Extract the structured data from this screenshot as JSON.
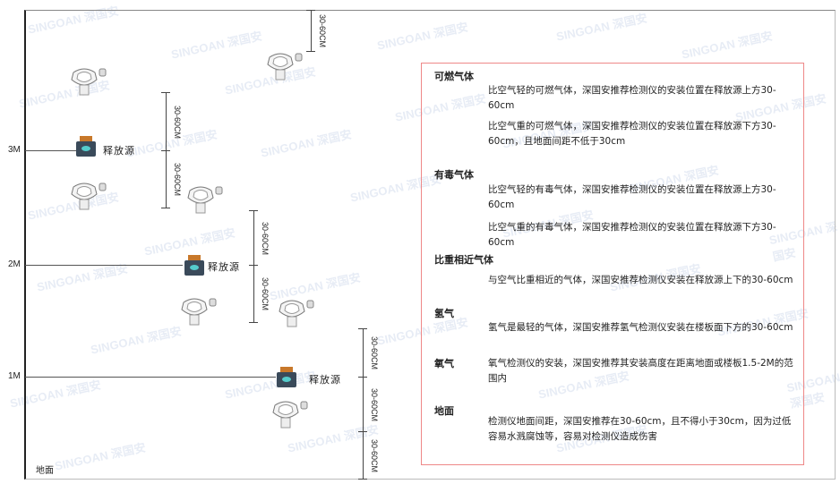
{
  "levels": {
    "m3": "3M",
    "m2": "2M",
    "m1": "1M",
    "ground": "地面"
  },
  "source_label": "释放源",
  "dim_label": "30-60CM",
  "watermark": "SINGOAN 深国安",
  "panel": {
    "s1": {
      "title": "可燃气体",
      "p1": "比空气轻的可燃气体，深国安推荐检测仪的安装位置在释放源上方30-60cm",
      "p2": "比空气重的可燃气体，深国安推荐检测仪的安装位置在释放源下方30-60cm，且地面间距不低于30cm"
    },
    "s2": {
      "title": "有毒气体",
      "p1": "比空气轻的有毒气体，深国安推荐检测仪的安装位置在释放源上方30-60cm",
      "p2": "比空气重的有毒气体，深国安推荐检测仪的安装位置在释放源下方30-60cm"
    },
    "s3": {
      "title": "比重相近气体",
      "p1": "与空气比重相近的气体，深国安推荐检测仪安装在释放源上下的30-60cm"
    },
    "s4": {
      "title": "氢气",
      "p1": "氢气是最轻的气体，深国安推荐氢气检测仪安装在楼板面下方的30-60cm"
    },
    "s5": {
      "title": "氧气",
      "p1": "氧气检测仪的安装，深国安推荐其安装高度在距离地面或楼板1.5-2M的范围内"
    },
    "s6": {
      "title": "地面",
      "p1": "检测仪地面间距，深国安推荐在30-60cm，且不得小于30cm，因为过低容易水溅腐蚀等，容易对检测仪造成伤害"
    }
  },
  "colors": {
    "panel_border": "#e88888",
    "source_body": "#3a4a5a",
    "source_cap": "#c8782a"
  }
}
